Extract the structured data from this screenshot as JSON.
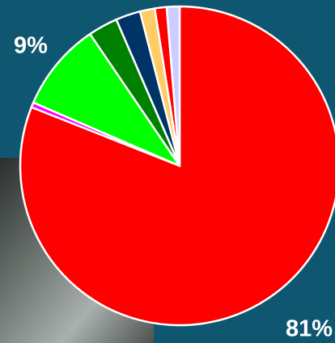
{
  "chart_data": {
    "type": "pie",
    "values": [
      81,
      0.5,
      9,
      3,
      2.5,
      1.5,
      1.2,
      1.3
    ],
    "value_labels": [
      "81%",
      null,
      "9%",
      null,
      null,
      null,
      null,
      null
    ],
    "colors": [
      "#ff0000",
      "#ff00ff",
      "#00ff00",
      "#008000",
      "#003366",
      "#ffcc66",
      "#ff0000",
      "#ccccff"
    ]
  }
}
